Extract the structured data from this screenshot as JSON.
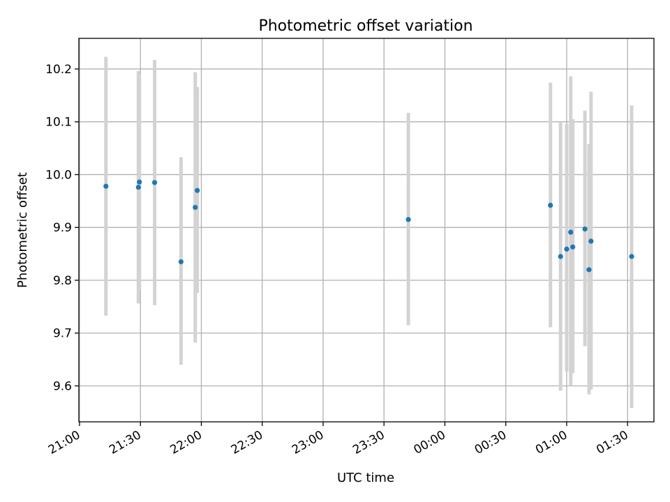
{
  "chart_data": {
    "type": "scatter",
    "title": "Photometric offset variation",
    "xlabel": "UTC time",
    "ylabel": "Photometric offset",
    "grid": true,
    "marker_color": "#1f77b4",
    "errorbar_color": "#d3d3d3",
    "x_ticks": [
      "21:00",
      "21:30",
      "22:00",
      "22:30",
      "23:00",
      "23:30",
      "00:00",
      "00:30",
      "01:00",
      "01:30"
    ],
    "y_ticks": [
      "9.6",
      "9.7",
      "9.8",
      "9.9",
      "10.0",
      "10.1",
      "10.2"
    ],
    "xlim": [
      "20:59:40",
      "01:43:00"
    ],
    "ylim": [
      9.532,
      10.258
    ],
    "points": [
      {
        "x": "21:13",
        "y": 9.978,
        "err_low": 9.733,
        "err_high": 10.223
      },
      {
        "x": "21:29",
        "y": 9.976,
        "err_low": 9.756,
        "err_high": 10.196
      },
      {
        "x": "21:29:30",
        "y": 9.986,
        "err_low": 9.781,
        "err_high": 10.191
      },
      {
        "x": "21:37",
        "y": 9.985,
        "err_low": 9.753,
        "err_high": 10.217
      },
      {
        "x": "21:50",
        "y": 9.835,
        "err_low": 9.64,
        "err_high": 10.033
      },
      {
        "x": "21:57",
        "y": 9.938,
        "err_low": 9.682,
        "err_high": 10.194
      },
      {
        "x": "21:58",
        "y": 9.97,
        "err_low": 9.776,
        "err_high": 10.166
      },
      {
        "x": "23:42",
        "y": 9.915,
        "err_low": 9.715,
        "err_high": 10.117
      },
      {
        "x": "00:52",
        "y": 9.942,
        "err_low": 9.711,
        "err_high": 10.174
      },
      {
        "x": "00:57",
        "y": 9.845,
        "err_low": 9.591,
        "err_high": 10.1
      },
      {
        "x": "01:00",
        "y": 9.859,
        "err_low": 9.627,
        "err_high": 10.096
      },
      {
        "x": "01:02",
        "y": 9.891,
        "err_low": 9.6,
        "err_high": 10.186
      },
      {
        "x": "01:03",
        "y": 9.863,
        "err_low": 9.624,
        "err_high": 10.105
      },
      {
        "x": "01:09",
        "y": 9.897,
        "err_low": 9.675,
        "err_high": 10.121
      },
      {
        "x": "01:11",
        "y": 9.82,
        "err_low": 9.584,
        "err_high": 10.058
      },
      {
        "x": "01:12",
        "y": 9.874,
        "err_low": 9.593,
        "err_high": 10.157
      },
      {
        "x": "01:32",
        "y": 9.845,
        "err_low": 9.558,
        "err_high": 10.131
      }
    ]
  }
}
